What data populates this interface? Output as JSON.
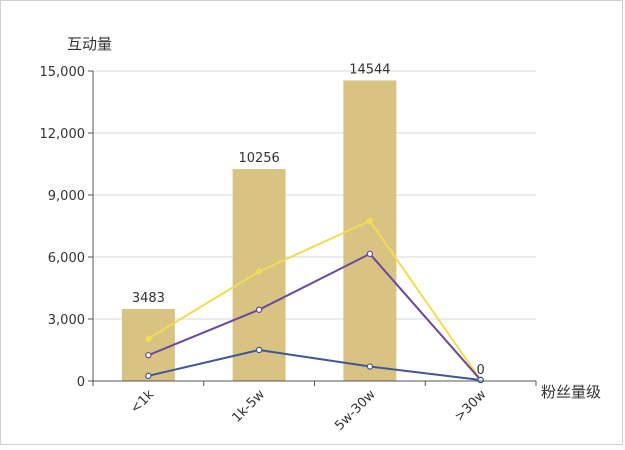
{
  "chart_data": {
    "type": "bar",
    "ylabel": "互动量",
    "xlabel": "粉丝量级",
    "categories": [
      "<1k",
      "1k-5w",
      "5w-30w",
      ">30w"
    ],
    "ylim": [
      0,
      15000
    ],
    "yticks": [
      0,
      3000,
      6000,
      9000,
      12000,
      15000
    ],
    "ytick_labels": [
      "0",
      "3,000",
      "6,000",
      "9,000",
      "12,000",
      "15,000"
    ],
    "grid": true,
    "bar": {
      "values": [
        3483,
        10256,
        14544,
        0
      ],
      "data_labels": [
        "3483",
        "10256",
        "14544",
        "0"
      ],
      "color": "#d9c383"
    },
    "lines": [
      {
        "values": [
          2050,
          5300,
          7750,
          50
        ],
        "color": "#f0dc52",
        "marker_fill": "#f0dc52"
      },
      {
        "values": [
          1250,
          3450,
          6150,
          50
        ],
        "color": "#6a4a9c",
        "marker_fill": "#ffffff"
      },
      {
        "values": [
          250,
          1500,
          700,
          50
        ],
        "color": "#3f579a",
        "marker_fill": "#ffffff"
      }
    ]
  }
}
